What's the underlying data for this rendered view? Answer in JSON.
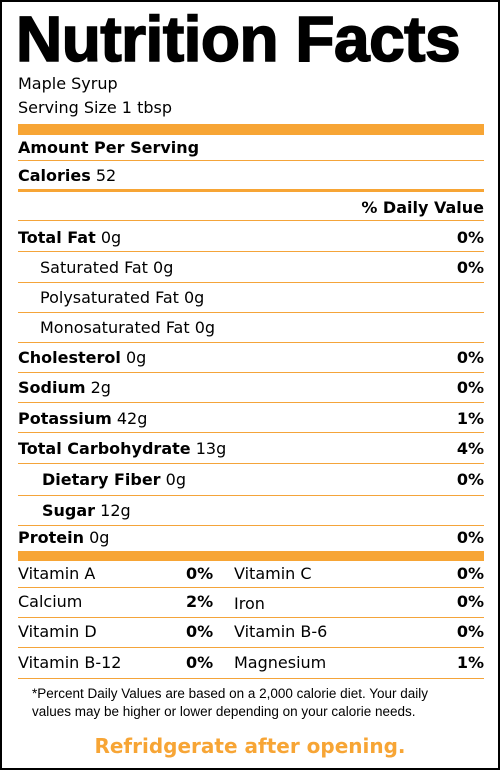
{
  "title": "Nutrition Facts",
  "product": "Maple Syrup",
  "serving_size": "Serving Size 1 tbsp",
  "amount_per_serving": "Amount Per Serving",
  "calories_label": "Calories",
  "calories_value": "52",
  "daily_value_header": "% Daily Value",
  "nutrients": [
    {
      "label": "Total Fat",
      "amount": "0g",
      "dv": "0%"
    },
    {
      "label": "Saturated Fat",
      "amount": "0g",
      "dv": "0%"
    },
    {
      "label": "Polysaturated Fat",
      "amount": "0g",
      "dv": ""
    },
    {
      "label": "Monosaturated Fat",
      "amount": "0g",
      "dv": ""
    },
    {
      "label": "Cholesterol",
      "amount": "0g",
      "dv": "0%"
    },
    {
      "label": "Sodium",
      "amount": "2g",
      "dv": "0%"
    },
    {
      "label": "Potassium",
      "amount": "42g",
      "dv": "1%"
    },
    {
      "label": "Total Carbohydrate",
      "amount": "13g",
      "dv": "4%"
    },
    {
      "label": "Dietary Fiber",
      "amount": "0g",
      "dv": "0%"
    },
    {
      "label": "Sugar",
      "amount": "12g",
      "dv": ""
    },
    {
      "label": "Protein",
      "amount": "0g",
      "dv": "0%"
    }
  ],
  "vitamins": [
    {
      "left_name": "Vitamin A",
      "left_pct": "0%",
      "right_name": "Vitamin C",
      "right_pct": "0%"
    },
    {
      "left_name": "Calcium",
      "left_pct": "2%",
      "right_name": "Iron",
      "right_pct": "0%"
    },
    {
      "left_name": "Vitamin D",
      "left_pct": "0%",
      "right_name": "Vitamin B-6",
      "right_pct": "0%"
    },
    {
      "left_name": "Vitamin B-12",
      "left_pct": "0%",
      "right_name": "Magnesium",
      "right_pct": "1%"
    }
  ],
  "footnote_line1": "*Percent Daily Values are based on a 2,000 calorie diet. Your daily",
  "footnote_line2": "values may be higher or lower depending on your calorie needs.",
  "footer_note": "Refridgerate after opening.",
  "colors": {
    "accent": "#f7a535",
    "footer_text": "#f7a535",
    "rule": "#f4a43a"
  }
}
